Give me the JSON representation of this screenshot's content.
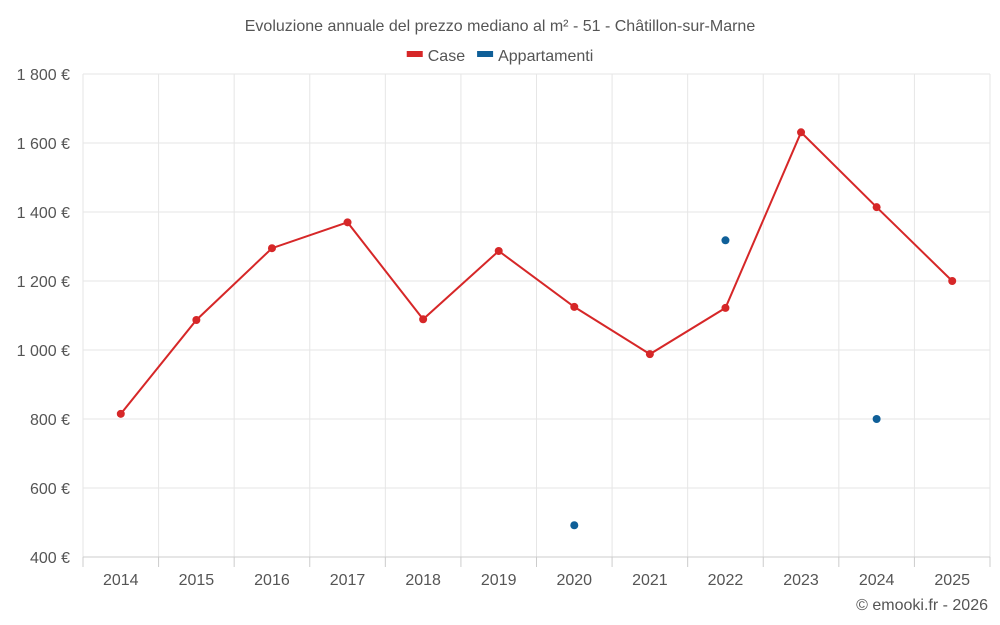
{
  "chart_data": {
    "type": "line",
    "title": "Evoluzione annuale del prezzo mediano al m² - 51 - Châtillon-sur-Marne",
    "categories": [
      "2014",
      "2015",
      "2016",
      "2017",
      "2018",
      "2019",
      "2020",
      "2021",
      "2022",
      "2023",
      "2024",
      "2025"
    ],
    "ylim": [
      400,
      1800
    ],
    "yticks": [
      400,
      600,
      800,
      1000,
      1200,
      1400,
      1600,
      1800
    ],
    "ytick_labels": [
      "400 €",
      "600 €",
      "800 €",
      "1 000 €",
      "1 200 €",
      "1 400 €",
      "1 600 €",
      "1 800 €"
    ],
    "legend_position": "top-center",
    "grid": true,
    "series": [
      {
        "name": "Case",
        "color": "#d62728",
        "values": [
          815,
          1087,
          1295,
          1370,
          1089,
          1287,
          1125,
          988,
          1122,
          1631,
          1414,
          1200
        ]
      },
      {
        "name": "Appartamenti",
        "color": "#0f5f98",
        "values": [
          null,
          null,
          null,
          null,
          null,
          null,
          492,
          null,
          1318,
          null,
          800,
          null
        ]
      }
    ],
    "credit": "© emooki.fr - 2026"
  }
}
